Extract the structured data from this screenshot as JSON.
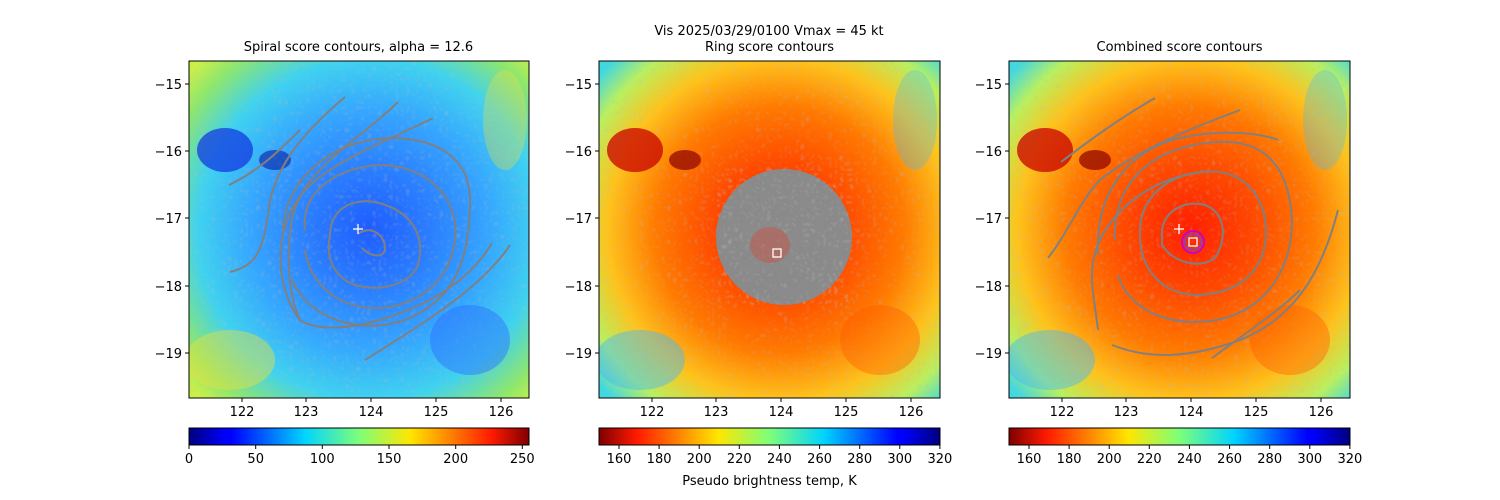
{
  "figure": {
    "suptitle": "Vis  2025/03/29/0100    Vmax = 45 kt",
    "colorbar_label": "Pseudo brightness temp, K"
  },
  "chart_data": [
    {
      "type": "heatmap",
      "title": "Spiral score contours, alpha = 12.6",
      "xlabel": "",
      "ylabel": "",
      "xticks": [
        122,
        123,
        124,
        125,
        126
      ],
      "yticks": [
        -15,
        -16,
        -17,
        -18,
        -19
      ],
      "xlim": [
        121.2,
        126.4
      ],
      "ylim": [
        -19.65,
        -14.65
      ],
      "colormap": "jet",
      "colormap_reversed": false,
      "colorbar": {
        "ticks": [
          0,
          50,
          100,
          150,
          200,
          250
        ],
        "range": [
          0,
          255
        ]
      },
      "contours": "spiral score",
      "contour_color": "#808080",
      "markers": [
        {
          "symbol": "plus",
          "x": 123.8,
          "y": -17.15,
          "color": "#ffffff"
        }
      ]
    },
    {
      "type": "heatmap",
      "title": "Ring score contours",
      "xlabel": "",
      "ylabel": "",
      "xticks": [
        122,
        123,
        124,
        125,
        126
      ],
      "yticks": [
        -15,
        -16,
        -17,
        -18,
        -19
      ],
      "xlim": [
        121.2,
        126.4
      ],
      "ylim": [
        -19.65,
        -14.65
      ],
      "colormap": "jet",
      "colormap_reversed": true,
      "colorbar": {
        "ticks": [
          160,
          180,
          200,
          220,
          240,
          260,
          280,
          300,
          320
        ],
        "range": [
          150,
          320
        ]
      },
      "contours": "ring score",
      "contour_color": "#808080",
      "markers": [
        {
          "symbol": "square",
          "x": 123.93,
          "y": -17.5,
          "color": "#ffffff"
        }
      ]
    },
    {
      "type": "heatmap",
      "title": "Combined score contours",
      "xlabel": "",
      "ylabel": "",
      "xticks": [
        122,
        123,
        124,
        125,
        126
      ],
      "yticks": [
        -15,
        -16,
        -17,
        -18,
        -19
      ],
      "xlim": [
        121.2,
        126.4
      ],
      "ylim": [
        -19.65,
        -14.65
      ],
      "colormap": "jet",
      "colormap_reversed": true,
      "colorbar": {
        "ticks": [
          160,
          180,
          200,
          220,
          240,
          260,
          280,
          300,
          320
        ],
        "range": [
          150,
          320
        ]
      },
      "contours": "combined score",
      "contour_color": "#808080",
      "markers": [
        {
          "symbol": "plus",
          "x": 123.8,
          "y": -17.15,
          "color": "#ffffff"
        },
        {
          "symbol": "square",
          "x": 124.08,
          "y": -17.35,
          "color": "#ffffff"
        },
        {
          "symbol": "circle",
          "x": 124.08,
          "y": -17.35,
          "color": "#cc00cc"
        }
      ]
    }
  ]
}
